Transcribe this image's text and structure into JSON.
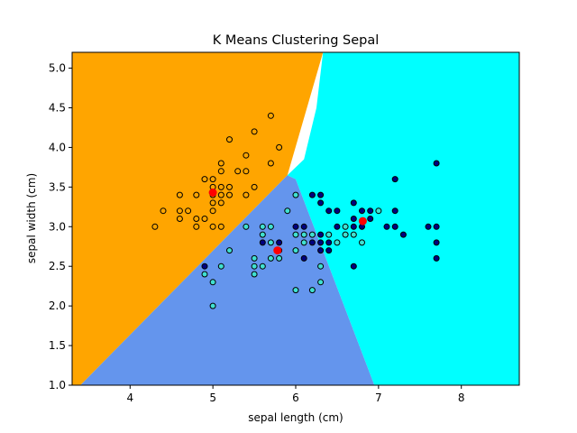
{
  "chart_data": {
    "type": "scatter",
    "title": "K Means Clustering Sepal",
    "xlabel": "sepal length (cm)",
    "ylabel": "sepal width (cm)",
    "xlim": [
      3.3,
      8.7
    ],
    "ylim": [
      1.0,
      5.2
    ],
    "x_ticks": [
      4,
      5,
      6,
      7,
      8
    ],
    "y_ticks": [
      1.0,
      1.5,
      2.0,
      2.5,
      3.0,
      3.5,
      4.0,
      4.5,
      5.0
    ],
    "grid": false,
    "legend": "none",
    "regions": [
      {
        "name": "cluster-orange",
        "color": "#ffa500",
        "vertices": [
          [
            3.3,
            1.0
          ],
          [
            3.4,
            1.0
          ],
          [
            5.9,
            3.65
          ],
          [
            6.33,
            5.2
          ],
          [
            3.3,
            5.2
          ]
        ]
      },
      {
        "name": "cluster-blue",
        "color": "#6495ed",
        "vertices": [
          [
            3.4,
            1.0
          ],
          [
            6.95,
            1.0
          ],
          [
            6.0,
            3.6
          ],
          [
            5.9,
            3.65
          ]
        ]
      },
      {
        "name": "cluster-cyan",
        "color": "#00ffff",
        "vertices": [
          [
            6.95,
            1.0
          ],
          [
            8.7,
            1.0
          ],
          [
            8.7,
            5.2
          ],
          [
            6.33,
            5.2
          ],
          [
            6.25,
            4.5
          ],
          [
            6.1,
            3.85
          ],
          [
            5.9,
            3.65
          ],
          [
            6.0,
            3.6
          ]
        ]
      }
    ],
    "centroids": [
      [
        5.0,
        3.43
      ],
      [
        5.78,
        2.7
      ],
      [
        6.81,
        3.07
      ]
    ],
    "centroid_color": "#ff0000",
    "series": [
      {
        "color": "#ffa500",
        "points": [
          [
            4.3,
            3.0
          ],
          [
            4.4,
            3.2
          ],
          [
            4.6,
            3.4
          ],
          [
            4.6,
            3.2
          ],
          [
            4.6,
            3.1
          ],
          [
            4.7,
            3.2
          ],
          [
            4.8,
            3.4
          ],
          [
            4.8,
            3.1
          ],
          [
            4.8,
            3.0
          ],
          [
            4.9,
            3.6
          ],
          [
            4.9,
            3.1
          ],
          [
            5.0,
            3.6
          ],
          [
            5.0,
            3.5
          ],
          [
            5.0,
            3.4
          ],
          [
            5.0,
            3.3
          ],
          [
            5.0,
            3.2
          ],
          [
            5.0,
            3.0
          ],
          [
            5.1,
            3.8
          ],
          [
            5.1,
            3.7
          ],
          [
            5.1,
            3.5
          ],
          [
            5.1,
            3.4
          ],
          [
            5.1,
            3.3
          ],
          [
            5.2,
            4.1
          ],
          [
            5.2,
            3.5
          ],
          [
            5.2,
            3.4
          ],
          [
            5.3,
            3.7
          ],
          [
            5.4,
            3.9
          ],
          [
            5.4,
            3.7
          ],
          [
            5.4,
            3.4
          ],
          [
            5.5,
            4.2
          ],
          [
            5.5,
            3.5
          ],
          [
            5.7,
            3.8
          ],
          [
            5.7,
            4.4
          ],
          [
            5.8,
            4.0
          ],
          [
            5.1,
            3.0
          ]
        ]
      },
      {
        "color": "#40e0d0",
        "points": [
          [
            4.9,
            2.4
          ],
          [
            5.0,
            2.3
          ],
          [
            5.0,
            2.0
          ],
          [
            5.1,
            2.5
          ],
          [
            5.2,
            2.7
          ],
          [
            5.4,
            3.0
          ],
          [
            5.5,
            2.4
          ],
          [
            5.5,
            2.6
          ],
          [
            5.6,
            3.0
          ],
          [
            5.6,
            2.9
          ],
          [
            5.6,
            2.5
          ],
          [
            5.7,
            3.0
          ],
          [
            5.7,
            2.8
          ],
          [
            5.7,
            2.6
          ],
          [
            5.8,
            2.7
          ],
          [
            5.8,
            2.6
          ],
          [
            5.9,
            3.2
          ],
          [
            6.0,
            3.4
          ],
          [
            6.0,
            2.9
          ],
          [
            6.0,
            2.7
          ],
          [
            6.0,
            2.2
          ],
          [
            6.1,
            2.9
          ],
          [
            6.1,
            2.8
          ],
          [
            6.2,
            2.9
          ],
          [
            6.2,
            2.2
          ],
          [
            6.3,
            2.5
          ],
          [
            6.3,
            2.3
          ],
          [
            6.4,
            2.9
          ],
          [
            6.6,
            3.0
          ],
          [
            6.7,
            2.9
          ],
          [
            6.8,
            2.8
          ],
          [
            7.0,
            3.2
          ],
          [
            6.5,
            2.8
          ],
          [
            6.6,
            2.9
          ],
          [
            5.5,
            2.5
          ]
        ]
      },
      {
        "color": "#000080",
        "points": [
          [
            4.9,
            2.5
          ],
          [
            5.6,
            2.8
          ],
          [
            5.8,
            2.8
          ],
          [
            6.0,
            3.0
          ],
          [
            6.1,
            3.0
          ],
          [
            6.1,
            2.6
          ],
          [
            6.2,
            3.4
          ],
          [
            6.2,
            2.8
          ],
          [
            6.3,
            3.4
          ],
          [
            6.3,
            3.3
          ],
          [
            6.3,
            2.9
          ],
          [
            6.3,
            2.8
          ],
          [
            6.3,
            2.7
          ],
          [
            6.4,
            3.2
          ],
          [
            6.4,
            2.8
          ],
          [
            6.4,
            2.7
          ],
          [
            6.5,
            3.2
          ],
          [
            6.5,
            3.0
          ],
          [
            6.7,
            3.3
          ],
          [
            6.7,
            3.1
          ],
          [
            6.7,
            3.0
          ],
          [
            6.7,
            2.5
          ],
          [
            6.8,
            3.2
          ],
          [
            6.8,
            3.0
          ],
          [
            6.9,
            3.2
          ],
          [
            6.9,
            3.1
          ],
          [
            7.1,
            3.0
          ],
          [
            7.2,
            3.6
          ],
          [
            7.2,
            3.2
          ],
          [
            7.2,
            3.0
          ],
          [
            7.3,
            2.9
          ],
          [
            7.6,
            3.0
          ],
          [
            7.7,
            3.8
          ],
          [
            7.7,
            3.0
          ],
          [
            7.7,
            2.8
          ],
          [
            7.7,
            2.6
          ]
        ]
      }
    ]
  }
}
